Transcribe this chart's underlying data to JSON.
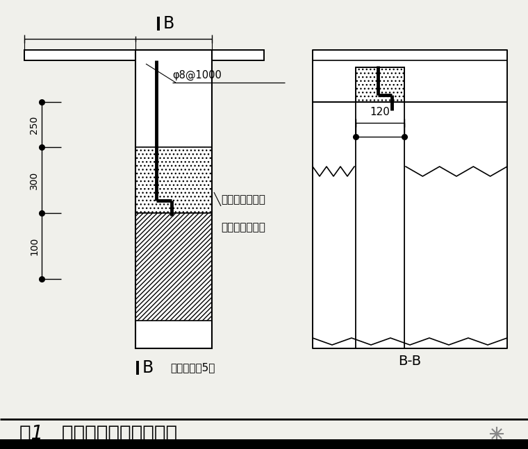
{
  "bg_color": "#f0f0eb",
  "title": "图1   砖墙顶部与梁连接做法",
  "label_B": "B",
  "label_BB": "B-B",
  "label_phi": "φ8@1000",
  "label_250": "250",
  "label_300": "300",
  "label_100": "100",
  "label_120": "120",
  "note1": "砖墙时随每皮砖",
  "note2": "用砂浆分层填实",
  "wall_note": "墙长度大于5米"
}
